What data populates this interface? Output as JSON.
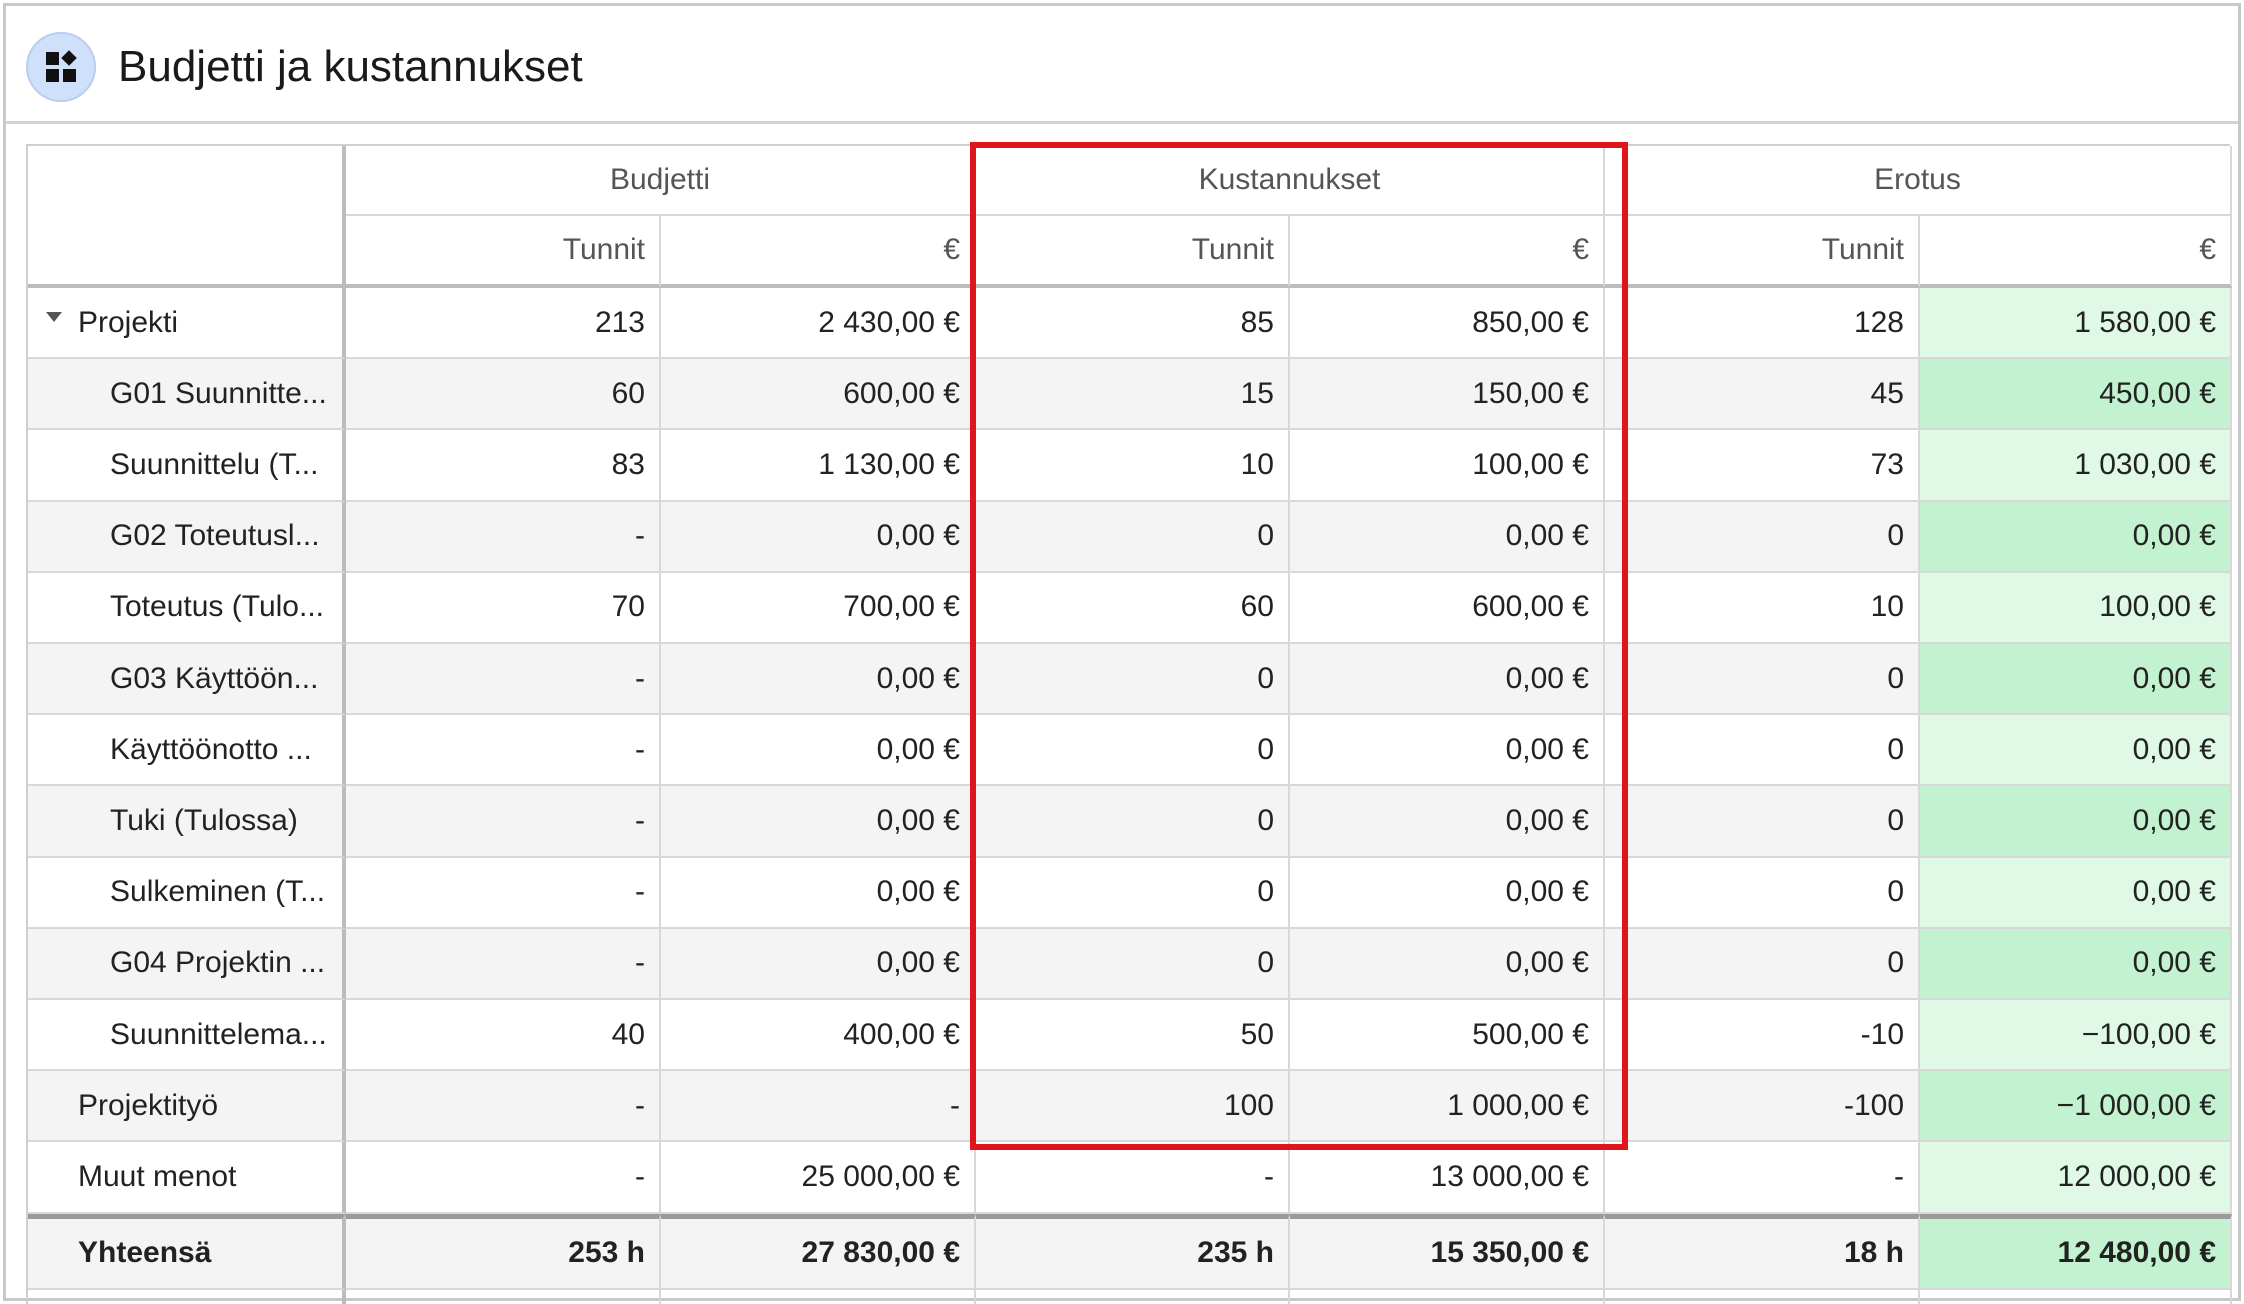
{
  "window": {
    "title": "Budjetti ja kustannukset",
    "icon": "dashboard-icon"
  },
  "header": {
    "groups": [
      "Budjetti",
      "Kustannukset",
      "Erotus"
    ],
    "subcolumns": [
      "Tunnit",
      "€",
      "Tunnit",
      "€",
      "Tunnit",
      "€"
    ]
  },
  "rows": [
    {
      "name": "Projekti",
      "values": [
        "213",
        "2 430,00 €",
        "85",
        "850,00 €",
        "128",
        "1 580,00 €"
      ]
    },
    {
      "name": "G01 Suunnitte...",
      "values": [
        "60",
        "600,00 €",
        "15",
        "150,00 €",
        "45",
        "450,00 €"
      ]
    },
    {
      "name": "Suunnittelu (T...",
      "values": [
        "83",
        "1 130,00 €",
        "10",
        "100,00 €",
        "73",
        "1 030,00 €"
      ]
    },
    {
      "name": "G02 Toteutusl...",
      "values": [
        "-",
        "0,00 €",
        "0",
        "0,00 €",
        "0",
        "0,00 €"
      ]
    },
    {
      "name": "Toteutus (Tulo...",
      "values": [
        "70",
        "700,00 €",
        "60",
        "600,00 €",
        "10",
        "100,00 €"
      ]
    },
    {
      "name": "G03 Käyttöön...",
      "values": [
        "-",
        "0,00 €",
        "0",
        "0,00 €",
        "0",
        "0,00 €"
      ]
    },
    {
      "name": "Käyttöönotto ...",
      "values": [
        "-",
        "0,00 €",
        "0",
        "0,00 €",
        "0",
        "0,00 €"
      ]
    },
    {
      "name": "Tuki (Tulossa)",
      "values": [
        "-",
        "0,00 €",
        "0",
        "0,00 €",
        "0",
        "0,00 €"
      ]
    },
    {
      "name": "Sulkeminen (T...",
      "values": [
        "-",
        "0,00 €",
        "0",
        "0,00 €",
        "0",
        "0,00 €"
      ]
    },
    {
      "name": "G04 Projektin ...",
      "values": [
        "-",
        "0,00 €",
        "0",
        "0,00 €",
        "0",
        "0,00 €"
      ]
    },
    {
      "name": "Suunnittelema...",
      "values": [
        "40",
        "400,00 €",
        "50",
        "500,00 €",
        "-10",
        "−100,00 €"
      ]
    },
    {
      "name": "Projektityö",
      "values": [
        "-",
        "-",
        "100",
        "1 000,00 €",
        "-100",
        "−1 000,00 €"
      ]
    },
    {
      "name": "Muut menot",
      "values": [
        "-",
        "25 000,00 €",
        "-",
        "13 000,00 €",
        "-",
        "12 000,00 €"
      ]
    }
  ],
  "total": {
    "name": "Yhteensä",
    "values": [
      "253 h",
      "27 830,00 €",
      "235 h",
      "15 350,00 €",
      "18 h",
      "12 480,00 €"
    ]
  },
  "colors": {
    "highlight": "#e0151b",
    "diff_light": "#e0f8e6",
    "diff_dark": "#c2f2cf"
  }
}
